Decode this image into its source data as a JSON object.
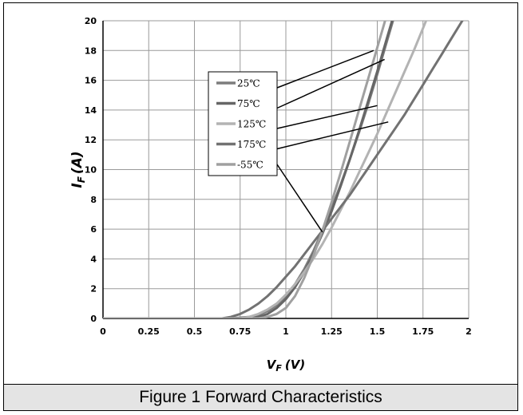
{
  "caption": "Figure 1 Forward Characteristics",
  "chart_data": {
    "type": "line",
    "xlabel_main": "V",
    "xlabel_sub": "F",
    "xlabel_unit": "(V)",
    "ylabel_main": "I",
    "ylabel_sub": "F",
    "ylabel_unit": "(A)",
    "xlim": [
      0,
      2
    ],
    "ylim": [
      0,
      20
    ],
    "x_ticks": [
      0,
      0.25,
      0.5,
      0.75,
      1,
      1.25,
      1.5,
      1.75,
      2
    ],
    "x_tick_labels": [
      "0",
      "0.25",
      "0.5",
      "0.75",
      "1",
      "1.25",
      "1.5",
      "1.75",
      "2"
    ],
    "y_ticks": [
      0,
      2,
      4,
      6,
      8,
      10,
      12,
      14,
      16,
      18,
      20
    ],
    "y_tick_labels": [
      "0",
      "2",
      "4",
      "6",
      "8",
      "10",
      "12",
      "14",
      "16",
      "18",
      "20"
    ],
    "grid": true,
    "legend_position": "top-left",
    "series": [
      {
        "name": "25℃",
        "color": "#7d7d7d",
        "x": [
          0,
          0.7,
          0.8,
          0.85,
          0.9,
          0.95,
          1.0,
          1.05,
          1.1,
          1.15,
          1.2,
          1.25,
          1.3,
          1.35,
          1.4,
          1.45,
          1.5,
          1.55,
          1.6
        ],
        "y": [
          0,
          0,
          0.1,
          0.25,
          0.5,
          0.9,
          1.5,
          2.3,
          3.3,
          4.5,
          5.9,
          7.4,
          9.0,
          10.7,
          12.5,
          14.4,
          16.4,
          18.5,
          20.6
        ]
      },
      {
        "name": "75℃",
        "color": "#666666",
        "x": [
          0,
          0.75,
          0.85,
          0.9,
          0.95,
          1.0,
          1.05,
          1.1,
          1.15,
          1.2,
          1.25,
          1.3,
          1.35,
          1.4,
          1.45,
          1.5,
          1.55,
          1.6
        ],
        "y": [
          0,
          0,
          0.1,
          0.3,
          0.7,
          1.3,
          2.1,
          3.1,
          4.3,
          5.7,
          7.2,
          8.9,
          10.7,
          12.6,
          14.6,
          16.6,
          18.7,
          20.8
        ]
      },
      {
        "name": "125℃",
        "color": "#b3b3b3",
        "x": [
          0,
          0.75,
          0.8,
          0.85,
          0.9,
          0.95,
          1.0,
          1.05,
          1.1,
          1.15,
          1.2,
          1.25,
          1.3,
          1.35,
          1.4,
          1.45,
          1.5,
          1.55,
          1.6,
          1.65,
          1.7,
          1.75,
          1.8
        ],
        "y": [
          0,
          0,
          0.1,
          0.3,
          0.6,
          1.0,
          1.6,
          2.3,
          3.1,
          4.0,
          5.0,
          6.1,
          7.3,
          8.5,
          9.8,
          11.1,
          12.4,
          13.8,
          15.2,
          16.6,
          18.0,
          19.5,
          21.0
        ]
      },
      {
        "name": "175℃",
        "color": "#727272",
        "x": [
          0,
          0.65,
          0.7,
          0.75,
          0.8,
          0.85,
          0.9,
          0.95,
          1.0,
          1.05,
          1.1,
          1.15,
          1.2,
          1.25,
          1.3,
          1.35,
          1.4,
          1.45,
          1.5,
          1.55,
          1.6,
          1.65,
          1.7,
          1.75,
          1.8,
          1.85,
          1.9,
          1.95,
          2.0
        ],
        "y": [
          0,
          0,
          0.1,
          0.3,
          0.6,
          1.0,
          1.5,
          2.1,
          2.8,
          3.5,
          4.3,
          5.1,
          5.9,
          6.7,
          7.5,
          8.3,
          9.2,
          10.1,
          11.0,
          11.9,
          12.8,
          13.7,
          14.7,
          15.7,
          16.7,
          17.7,
          18.7,
          19.7,
          20.7
        ]
      },
      {
        "name": "-55℃",
        "color": "#a0a0a0",
        "x": [
          0,
          0.85,
          0.9,
          0.95,
          1.0,
          1.05,
          1.1,
          1.15,
          1.2,
          1.25,
          1.3,
          1.35,
          1.4,
          1.45,
          1.5,
          1.55,
          1.6
        ],
        "y": [
          0,
          0,
          0.1,
          0.3,
          0.7,
          1.5,
          2.7,
          4.2,
          5.9,
          7.8,
          9.8,
          11.9,
          14.0,
          16.1,
          18.2,
          20.3,
          22.4
        ]
      }
    ]
  }
}
